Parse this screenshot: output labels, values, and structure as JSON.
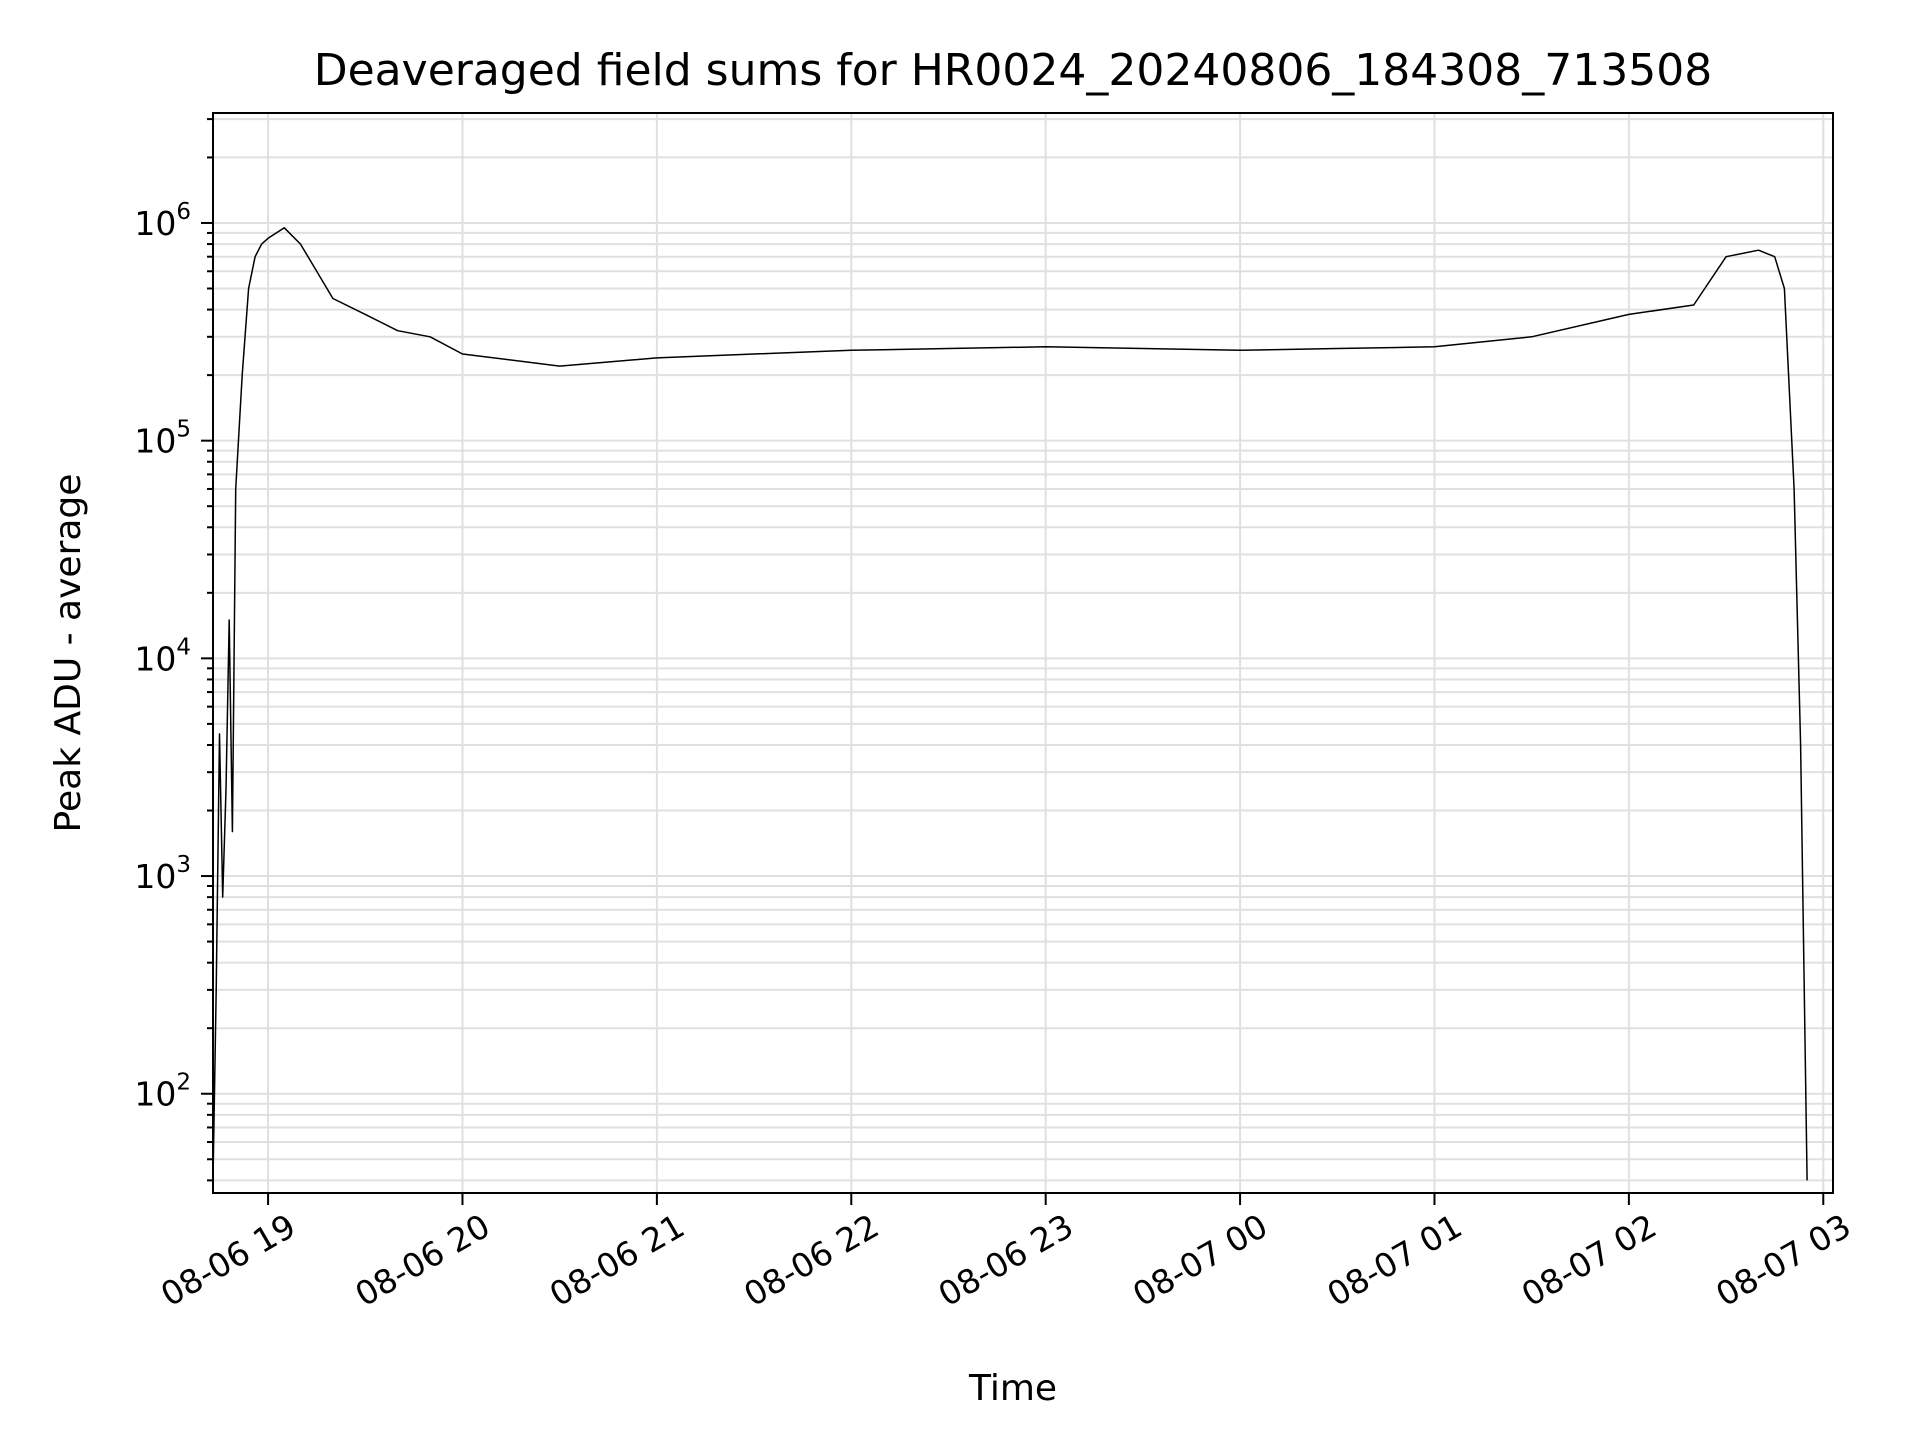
{
  "chart_data": {
    "type": "line",
    "title": "Deaveraged field sums for HR0024_20240806_184308_713508",
    "xlabel": "Time",
    "ylabel": "Peak ADU - average",
    "yscale": "log",
    "ylim": [
      35,
      3200000
    ],
    "xlim": [
      "2024-08-06 18:43",
      "2024-08-07 03:03"
    ],
    "grid": true,
    "line_color": "#000000",
    "grid_color": "#e0e0e0",
    "x_ticks": [
      {
        "t": "2024-08-06 19:00",
        "label": "08-06 19"
      },
      {
        "t": "2024-08-06 20:00",
        "label": "08-06 20"
      },
      {
        "t": "2024-08-06 21:00",
        "label": "08-06 21"
      },
      {
        "t": "2024-08-06 22:00",
        "label": "08-06 22"
      },
      {
        "t": "2024-08-06 23:00",
        "label": "08-06 23"
      },
      {
        "t": "2024-08-07 00:00",
        "label": "08-07 00"
      },
      {
        "t": "2024-08-07 01:00",
        "label": "08-07 01"
      },
      {
        "t": "2024-08-07 02:00",
        "label": "08-07 02"
      },
      {
        "t": "2024-08-07 03:00",
        "label": "08-07 03"
      }
    ],
    "y_ticks": [
      {
        "value": 100,
        "base": "10",
        "exp": "2"
      },
      {
        "value": 1000,
        "base": "10",
        "exp": "3"
      },
      {
        "value": 10000,
        "base": "10",
        "exp": "4"
      },
      {
        "value": 100000,
        "base": "10",
        "exp": "5"
      },
      {
        "value": 1000000,
        "base": "10",
        "exp": "6"
      }
    ],
    "x": [
      "2024-08-06 18:43",
      "2024-08-06 18:44",
      "2024-08-06 18:45",
      "2024-08-06 18:46",
      "2024-08-06 18:47",
      "2024-08-06 18:48",
      "2024-08-06 18:49",
      "2024-08-06 18:50",
      "2024-08-06 18:52",
      "2024-08-06 18:54",
      "2024-08-06 18:56",
      "2024-08-06 18:58",
      "2024-08-06 19:00",
      "2024-08-06 19:05",
      "2024-08-06 19:10",
      "2024-08-06 19:15",
      "2024-08-06 19:20",
      "2024-08-06 19:30",
      "2024-08-06 19:40",
      "2024-08-06 19:50",
      "2024-08-06 20:00",
      "2024-08-06 20:30",
      "2024-08-06 21:00",
      "2024-08-06 21:30",
      "2024-08-06 22:00",
      "2024-08-06 22:30",
      "2024-08-06 23:00",
      "2024-08-06 23:30",
      "2024-08-07 00:00",
      "2024-08-07 00:30",
      "2024-08-07 01:00",
      "2024-08-07 01:30",
      "2024-08-07 02:00",
      "2024-08-07 02:20",
      "2024-08-07 02:30",
      "2024-08-07 02:40",
      "2024-08-07 02:45",
      "2024-08-07 02:48",
      "2024-08-07 02:51",
      "2024-08-07 02:53",
      "2024-08-07 02:55"
    ],
    "y": [
      40,
      300,
      4500,
      800,
      2500,
      15000,
      1600,
      60000,
      200000,
      500000,
      700000,
      800000,
      850000,
      950000,
      800000,
      600000,
      450000,
      380000,
      320000,
      300000,
      250000,
      220000,
      240000,
      250000,
      260000,
      265000,
      270000,
      265000,
      260000,
      265000,
      270000,
      300000,
      380000,
      420000,
      700000,
      750000,
      700000,
      500000,
      60000,
      4000,
      40
    ]
  }
}
